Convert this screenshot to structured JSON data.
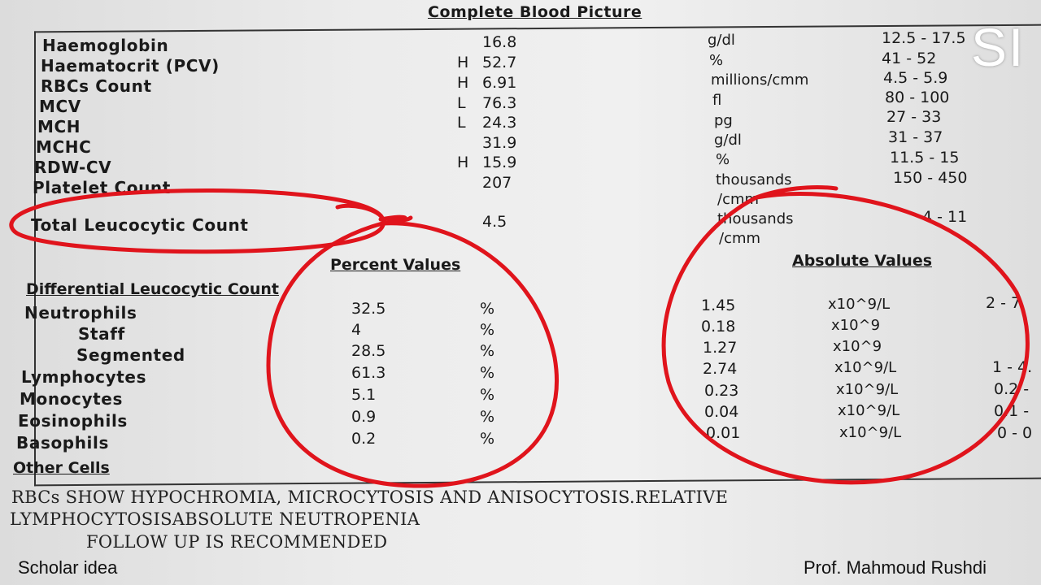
{
  "title": "Complete Blood Picture",
  "logo": "SI",
  "cbc": [
    {
      "name": "Haemoglobin",
      "flag": "",
      "value": "16.8",
      "unit": "g/dl",
      "range": "12.5 - 17.5"
    },
    {
      "name": "Haematocrit (PCV)",
      "flag": "H",
      "value": "52.7",
      "unit": "%",
      "range": "41 - 52"
    },
    {
      "name": "RBCs Count",
      "flag": "H",
      "value": "6.91",
      "unit": "millions/cmm",
      "range": "4.5 - 5.9"
    },
    {
      "name": "MCV",
      "flag": "L",
      "value": "76.3",
      "unit": "fl",
      "range": "80 - 100"
    },
    {
      "name": "MCH",
      "flag": "L",
      "value": "24.3",
      "unit": "pg",
      "range": "27 - 33"
    },
    {
      "name": "MCHC",
      "flag": "",
      "value": "31.9",
      "unit": "g/dl",
      "range": "31 - 37"
    },
    {
      "name": "RDW-CV",
      "flag": "H",
      "value": "15.9",
      "unit": "%",
      "range": "11.5 - 15"
    },
    {
      "name": "Platelet Count",
      "flag": "",
      "value": "207",
      "unit": "thousands",
      "unit2": "/cmm",
      "range": "150 - 450"
    }
  ],
  "tlc": {
    "name": "Total Leucocytic Count",
    "value": "4.5",
    "unit": "thousands",
    "unit2": "/cmm",
    "range": "4 - 11"
  },
  "headers": {
    "percent": "Percent Values",
    "absolute": "Absolute Values",
    "differential": "Differential Leucocytic Count"
  },
  "differential": [
    {
      "name": "Neutrophils",
      "indent": false,
      "percent": "32.5",
      "pct_unit": "%",
      "absolute": "1.45",
      "abs_unit": "x10^9/L",
      "range": "2 - 7"
    },
    {
      "name": "Staff",
      "indent": true,
      "percent": "4",
      "pct_unit": "%",
      "absolute": "0.18",
      "abs_unit": "x10^9",
      "range": ""
    },
    {
      "name": "Segmented",
      "indent": true,
      "percent": "28.5",
      "pct_unit": "%",
      "absolute": "1.27",
      "abs_unit": "x10^9",
      "range": ""
    },
    {
      "name": "Lymphocytes",
      "indent": false,
      "percent": "61.3",
      "pct_unit": "%",
      "absolute": "2.74",
      "abs_unit": "x10^9/L",
      "range": "1 - 4."
    },
    {
      "name": "Monocytes",
      "indent": false,
      "percent": "5.1",
      "pct_unit": "%",
      "absolute": "0.23",
      "abs_unit": "x10^9/L",
      "range": "0.2 -"
    },
    {
      "name": "Eosinophils",
      "indent": false,
      "percent": "0.9",
      "pct_unit": "%",
      "absolute": "0.04",
      "abs_unit": "x10^9/L",
      "range": "0.1 -"
    },
    {
      "name": "Basophils",
      "indent": false,
      "percent": "0.2",
      "pct_unit": "%",
      "absolute": "0.01",
      "abs_unit": "x10^9/L",
      "range": "0 - 0"
    }
  ],
  "other_cells": "Other Cells",
  "remarks": [
    "RBCs SHOW HYPOCHROMIA, MICROCYTOSIS AND ANISOCYTOSIS.RELATIVE",
    "LYMPHOCYTOSISABSOLUTE NEUTROPENIA",
    "FOLLOW UP IS RECOMMENDED"
  ],
  "footer": {
    "left": "Scholar idea",
    "right": "Prof. Mahmoud Rushdi"
  },
  "colors": {
    "annotation": "#e0141c",
    "logo": "#ffffff"
  }
}
